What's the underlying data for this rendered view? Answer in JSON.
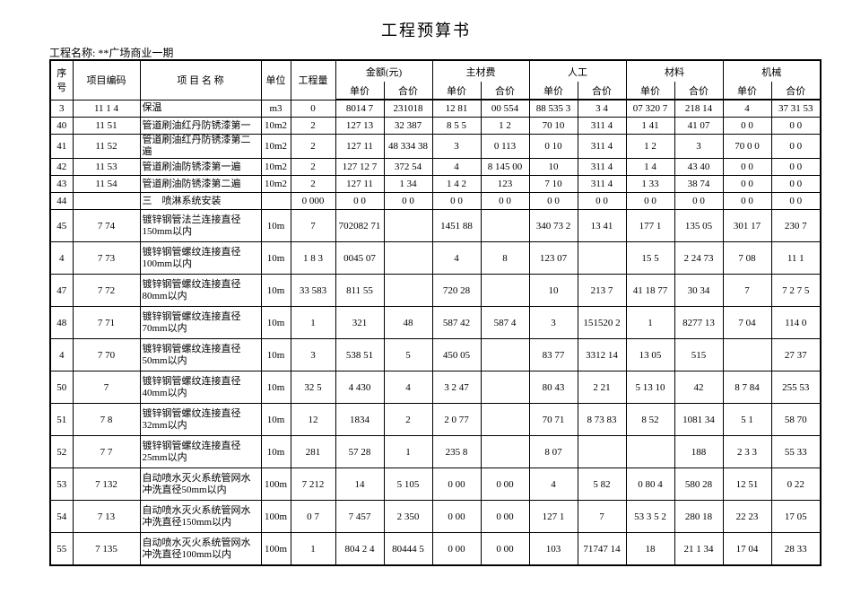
{
  "header": {
    "title": "工程预算书",
    "project": "工程名称: **广场商业一期"
  },
  "table": {
    "columns": [
      "序号",
      "项目编码",
      "项 目 名 称",
      "单位",
      "工程量"
    ],
    "groups": [
      "金额(元)",
      "主材费",
      "人工",
      "材料",
      "机械"
    ],
    "subcolumns": [
      "单价",
      "合价",
      "单价",
      "合价",
      "单价",
      "合价",
      "单价",
      "合价",
      "单价",
      "合价"
    ],
    "rows": [
      [
        "3",
        "11 1 4",
        "保温",
        "m3",
        "0",
        "8014 7",
        "231018",
        "12 81",
        "00 554",
        "88 535 3",
        "3 4",
        "07 320 7",
        "218 14",
        "4",
        "37 31 53"
      ],
      [
        "40",
        "11 51",
        "管道刷油红丹防锈漆第一",
        "10m2",
        "2",
        "127 13",
        "32 387",
        "8 5 5",
        "1 2",
        "70 10",
        "311 4",
        "1 41",
        "41 07",
        "0 0",
        "0 0"
      ],
      [
        "41",
        "11 52",
        "管道刷油红丹防锈漆第二遍",
        "10m2",
        "2",
        "127 11",
        "48 334 38",
        "3",
        "0 113",
        "0 10",
        "311 4",
        "1 2",
        "3",
        "70 0 0",
        "0 0"
      ],
      [
        "42",
        "11 53",
        "管道刷油防锈漆第一遍",
        "10m2",
        "2",
        "127 12 7",
        "372 54",
        "4",
        "8 145 00",
        "10",
        "311 4",
        "1 4",
        "43 40",
        "0 0",
        "0 0"
      ],
      [
        "43",
        "11 54",
        "管道刷油防锈漆第二遍",
        "10m2",
        "2",
        "127 11",
        "1 34",
        "1 4 2",
        "123",
        "7 10",
        "311 4",
        "1 33",
        "38 74",
        "0 0",
        "0 0"
      ],
      [
        "44",
        null,
        "三　喷淋系统安装",
        null,
        "0 000",
        "0 0",
        "0 0",
        "0 0",
        "0 0",
        "0 0",
        "0 0",
        "0 0",
        "0 0",
        "0 0",
        "0 0"
      ],
      [
        "45",
        "7 74",
        "镀锌钢管法兰连接直径150mm以内",
        "10m",
        "7",
        "702082 71",
        null,
        "1451 88",
        null,
        "340 73 2",
        "13 41",
        "177 1",
        "135 05",
        "301 17",
        "230 7"
      ],
      [
        "4",
        "7 73",
        "镀锌钢管螺纹连接直径100mm以内",
        "10m",
        "1 8 3",
        "0045 07",
        null,
        "4",
        "8",
        "123 07",
        null,
        "15 5",
        "2 24 73",
        "7 08",
        "11 1"
      ],
      [
        "47",
        "7 72",
        "镀锌钢管螺纹连接直径80mm以内",
        "10m",
        "33 583",
        "811 55",
        null,
        "720 28",
        null,
        "10",
        "213 7",
        "41 18 77",
        "30 34",
        "7",
        "7 2 7 5"
      ],
      [
        "48",
        "7 71",
        "镀锌钢管螺纹连接直径70mm以内",
        "10m",
        "1",
        "321",
        "48",
        "587 42",
        "587 4",
        "3",
        "151520 2",
        "1",
        "8277 13",
        "7 04",
        "114 0"
      ],
      [
        "4",
        "7 70",
        "镀锌钢管螺纹连接直径50mm以内",
        "10m",
        "3",
        "538 51",
        "5",
        "450 05",
        null,
        "83 77",
        "3312 14",
        "13 05",
        "515",
        null,
        "27 37"
      ],
      [
        "50",
        "7",
        "镀锌钢管螺纹连接直径40mm以内",
        "10m",
        "32 5",
        "4 430",
        "4",
        "3 2 47",
        null,
        "80 43",
        "2 21",
        "5 13 10",
        "42",
        "8 7 84",
        "255 53"
      ],
      [
        "51",
        "7 8",
        "镀锌钢管螺纹连接直径32mm以内",
        "10m",
        "12",
        "1834",
        "2",
        "2 0 77",
        null,
        "70 71",
        "8 73 83",
        "8 52",
        "1081 34",
        "5 1",
        "58 70"
      ],
      [
        "52",
        "7 7",
        "镀锌钢管螺纹连接直径25mm以内",
        "10m",
        "281",
        "57 28",
        "1",
        "235 8",
        null,
        "8 07",
        null,
        null,
        "188",
        "2 3 3",
        "55 33"
      ],
      [
        "53",
        "7 132",
        "自动喷水灭火系统管网水冲洗直径50mm以内",
        "100m",
        "7 212",
        "14",
        "5 105",
        "0 00",
        "0 00",
        "4",
        "5 82",
        "0 80 4",
        "580 28",
        "12 51",
        "0 22"
      ],
      [
        "54",
        "7 13",
        "自动喷水灭火系统管网水冲洗直径150mm以内",
        "100m",
        "0 7",
        "7 457",
        "2 350",
        "0 00",
        "0 00",
        "127 1",
        "7",
        "53 3 5 2",
        "280 18",
        "22 23",
        "17 05"
      ],
      [
        "55",
        "7 135",
        "自动喷水灭火系统管网水冲洗直径100mm以内",
        "100m",
        "1",
        "804 2 4",
        "80444 5",
        "0 00",
        "0 00",
        "103",
        "71747 14",
        "18",
        "21 1 34",
        "17 04",
        "28 33"
      ]
    ]
  }
}
